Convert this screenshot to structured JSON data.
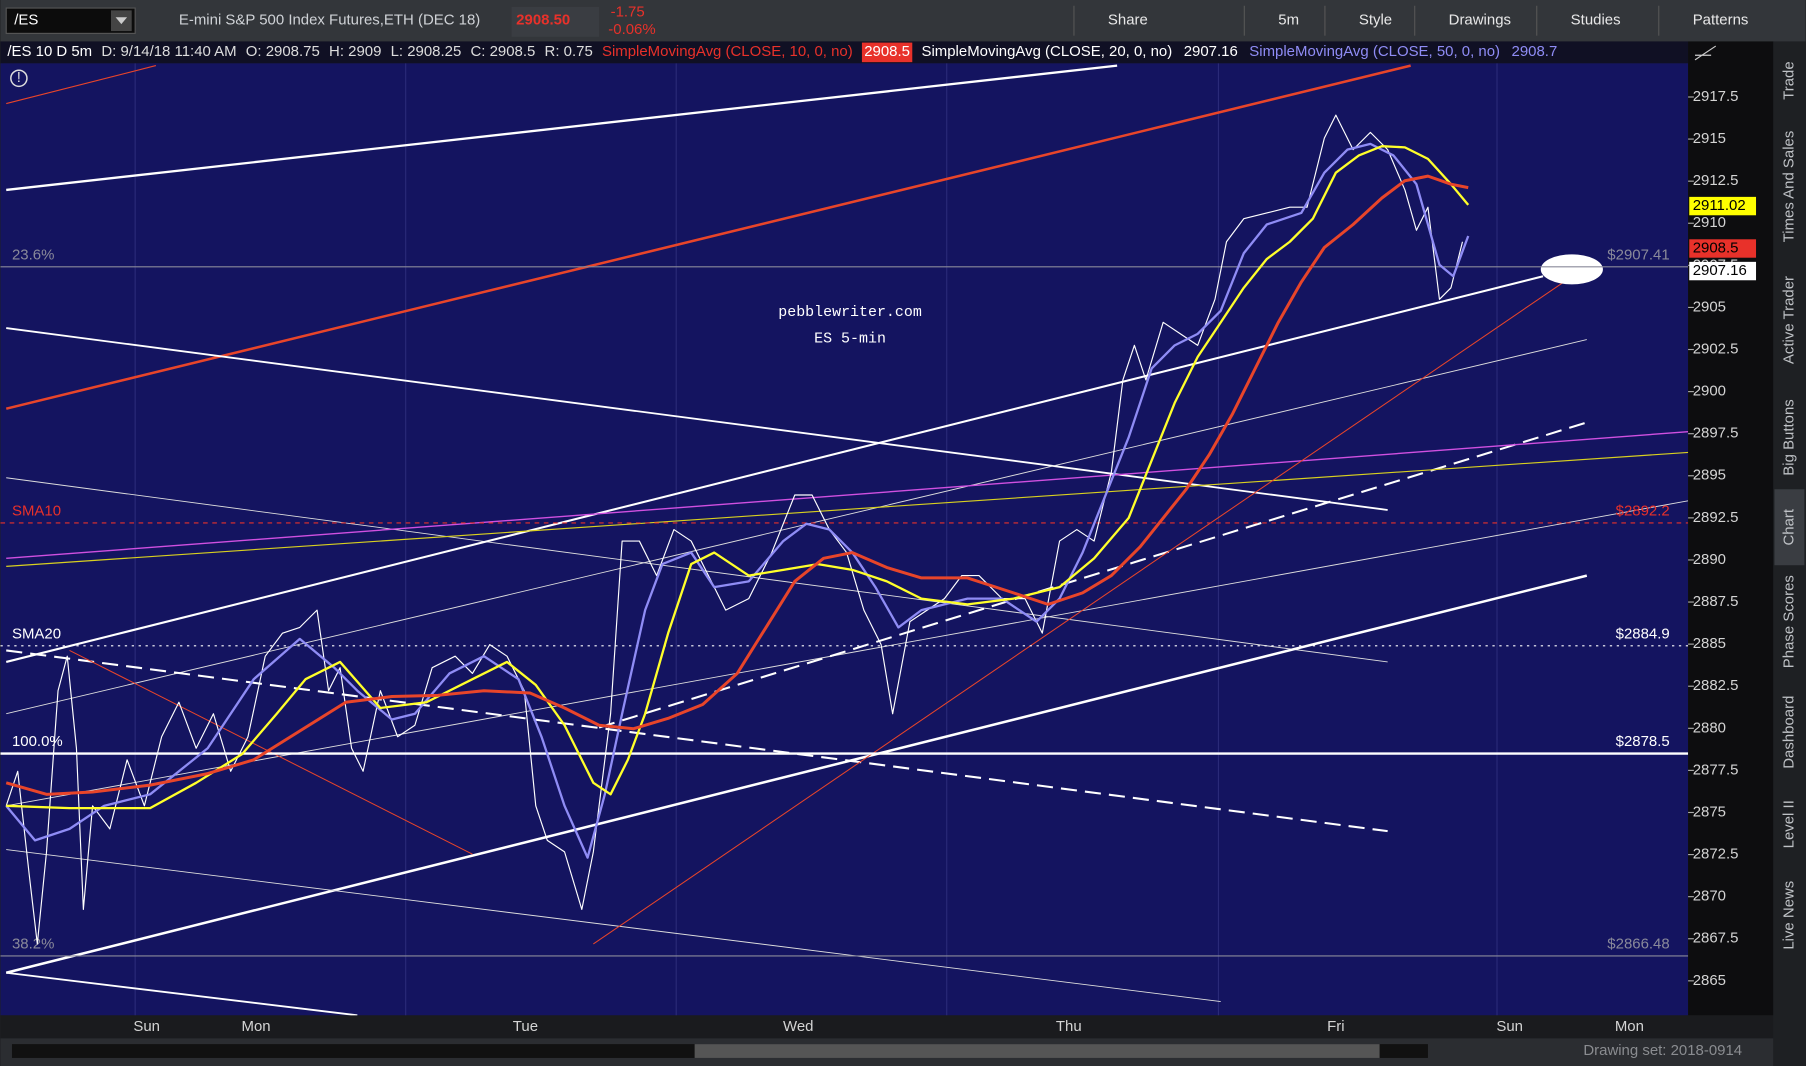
{
  "toolbar": {
    "symbol": "/ES",
    "instrument": "E-mini S&P 500 Index Futures,ETH (DEC 18)",
    "last_price": "2908.50",
    "change": "-1.75",
    "change_pct": "-0.06%",
    "buttons": [
      "Share",
      "5m",
      "Style",
      "Drawings",
      "Studies",
      "Patterns"
    ]
  },
  "info_bar": {
    "chart_id": "/ES 10 D 5m",
    "date": "D: 9/14/18 11:40 AM",
    "open": "O: 2908.75",
    "high": "H: 2909",
    "low": "L: 2908.25",
    "close": "C: 2908.5",
    "range": "R: 0.75",
    "studies": [
      {
        "name": "SimpleMovingAvg (CLOSE, 10, 0, no)",
        "value": "2908.5",
        "color": "#e8312a"
      },
      {
        "name": "SimpleMovingAvg (CLOSE, 20, 0, no)",
        "value": "2907.16",
        "color": "#ffffff"
      },
      {
        "name": "SimpleMovingAvg (CLOSE, 50, 0, no)",
        "value": "2908.7",
        "color": "#8f8cf5"
      }
    ]
  },
  "watermark": [
    "pebblewriter.com",
    "ES 5-min"
  ],
  "price_axis": {
    "ylim": [
      2862.95,
      2919.5
    ],
    "yticks": [
      2865,
      2867.5,
      2870,
      2872.5,
      2875,
      2877.5,
      2880,
      2882.5,
      2885,
      2887.5,
      2890,
      2892.5,
      2895,
      2897.5,
      2900,
      2902.5,
      2905,
      2907.5,
      2910,
      2912.5,
      2915,
      2917.5
    ],
    "price_boxes": [
      {
        "value": 2911.02,
        "color": "#ffff00"
      },
      {
        "value": 2908.5,
        "color": "#e8312a"
      },
      {
        "value": 2907.16,
        "color": "#ffffff"
      }
    ]
  },
  "levels": [
    {
      "name": "23.6%",
      "value": 2907.41,
      "label": "$2907.41",
      "color": "#8a8a9a"
    },
    {
      "name": "SMA10",
      "value": 2892.2,
      "label": "$2892.2",
      "color": "#e8312a"
    },
    {
      "name": "SMA20",
      "value": 2884.9,
      "label": "$2884.9",
      "color": "#ffffff"
    },
    {
      "name": "100.0%",
      "value": 2878.5,
      "label": "$2878.5",
      "color": "#ffffff"
    },
    {
      "name": "38.2%",
      "value": 2866.48,
      "label": "$2866.48",
      "color": "#8a8a9a"
    }
  ],
  "time_axis": [
    "Sun",
    "Mon",
    "Tue",
    "Wed",
    "Thu",
    "Fri",
    "Sun",
    "Mon"
  ],
  "side_tabs": [
    "Trade",
    "Times And Sales",
    "Active Trader",
    "Big Buttons",
    "Chart",
    "Phase Scores",
    "Dashboard",
    "Level II",
    "Live News"
  ],
  "footer": {
    "drawing_set": "Drawing set: 2018-0914"
  }
}
